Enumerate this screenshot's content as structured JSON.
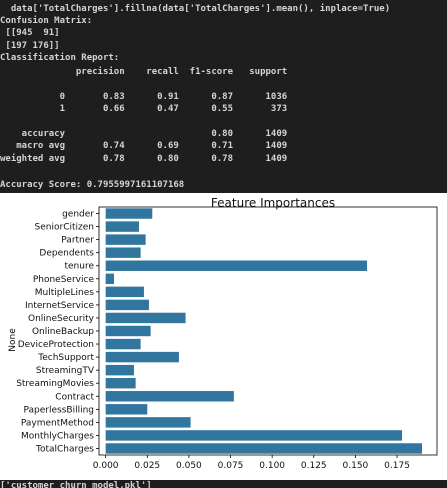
{
  "console": {
    "lines": [
      "  data['TotalCharges'].fillna(data['TotalCharges'].mean(), inplace=True)",
      "Confusion Matrix:",
      " [[945  91]",
      " [197 176]]",
      "Classification Report:",
      "              precision    recall  f1-score   support",
      "",
      "           0       0.83      0.91      0.87      1036",
      "           1       0.66      0.47      0.55       373",
      "",
      "    accuracy                           0.80      1409",
      "   macro avg       0.74      0.69      0.71      1409",
      "weighted avg       0.78      0.80      0.78      1409",
      "",
      "Accuracy Score: 0.7955997161107168"
    ],
    "footer": "['customer_churn_model.pkl']"
  },
  "chart_data": {
    "type": "bar",
    "orientation": "horizontal",
    "title": "Feature Importances",
    "xlabel": "",
    "ylabel": "None",
    "bar_color": "#31769f",
    "categories": [
      "gender",
      "SeniorCitizen",
      "Partner",
      "Dependents",
      "tenure",
      "PhoneService",
      "MultipleLines",
      "InternetService",
      "OnlineSecurity",
      "OnlineBackup",
      "DeviceProtection",
      "TechSupport",
      "StreamingTV",
      "StreamingMovies",
      "Contract",
      "PaperlessBilling",
      "PaymentMethod",
      "MonthlyCharges",
      "TotalCharges"
    ],
    "values": [
      0.028,
      0.02,
      0.024,
      0.021,
      0.157,
      0.005,
      0.023,
      0.026,
      0.048,
      0.027,
      0.021,
      0.044,
      0.017,
      0.018,
      0.077,
      0.025,
      0.051,
      0.178,
      0.19
    ],
    "xlim": [
      -0.004,
      0.199
    ],
    "xticks": [
      0.0,
      0.025,
      0.05,
      0.075,
      0.1,
      0.125,
      0.15,
      0.175
    ],
    "xtick_labels": [
      "0.000",
      "0.025",
      "0.050",
      "0.075",
      "0.100",
      "0.125",
      "0.150",
      "0.175"
    ]
  }
}
